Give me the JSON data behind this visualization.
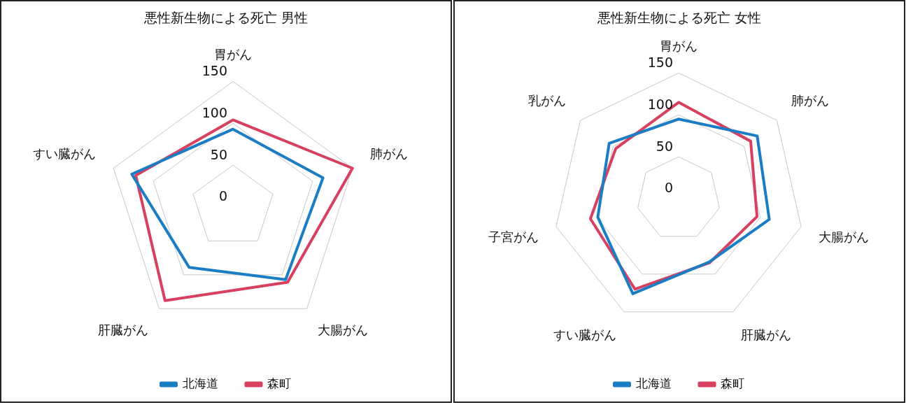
{
  "chart_data": [
    {
      "type": "radar",
      "title": "悪性新生物による死亡 男性",
      "categories": [
        "胃がん",
        "肺がん",
        "大腸がん",
        "肝臓がん",
        "すい臓がん"
      ],
      "series": [
        {
          "name": "北海道",
          "color": "#1b7dc4",
          "values": [
            93,
            113,
            107,
            89,
            127
          ]
        },
        {
          "name": "森町",
          "color": "#d8405f",
          "values": [
            104,
            150,
            111,
            138,
            122
          ]
        }
      ],
      "ylim": [
        0,
        150
      ],
      "yticks": [
        0,
        50,
        100,
        150
      ],
      "grid": true,
      "legend": "bottom",
      "marker": "none"
    },
    {
      "type": "radar",
      "title": "悪性新生物による死亡 女性",
      "categories": [
        "胃がん",
        "肺がん",
        "大腸がん",
        "肝臓がん",
        "すい臓がん",
        "子宮がん",
        "乳がん"
      ],
      "series": [
        {
          "name": "北海道",
          "color": "#1b7dc4",
          "values": [
            95,
            120,
            111,
            84,
            126,
            99,
            106
          ]
        },
        {
          "name": "森町",
          "color": "#d8405f",
          "values": [
            115,
            110,
            96,
            85,
            120,
            108,
            96
          ]
        }
      ],
      "ylim": [
        0,
        150
      ],
      "yticks": [
        0,
        50,
        100,
        150
      ],
      "grid": true,
      "legend": "bottom",
      "marker": "none"
    }
  ]
}
